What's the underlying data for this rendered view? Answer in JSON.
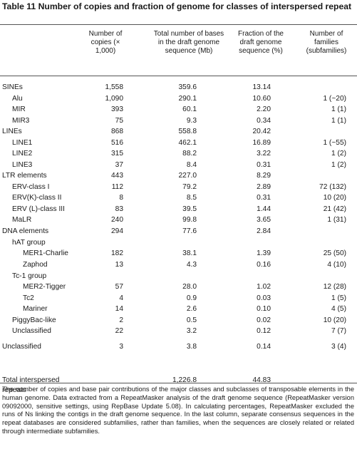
{
  "title": "Table 11 Number of copies and fraction of genome for classes of interspersed repeat",
  "headers": {
    "copies": "Number of copies (× 1,000)",
    "bases": "Total number of bases in the draft genome sequence (Mb)",
    "fraction": "Fraction of the draft genome sequence (%)",
    "families": "Number of families (subfamilies)"
  },
  "rows": [
    {
      "label": "SINEs",
      "copies": "1,558",
      "bases": "359.6",
      "fraction": "13.14",
      "families": ""
    },
    {
      "label": "Alu",
      "copies": "1,090",
      "bases": "290.1",
      "fraction": "10.60",
      "families": "1 (~20)"
    },
    {
      "label": "MIR",
      "copies": "393",
      "bases": "60.1",
      "fraction": "2.20",
      "families": "1 (1)"
    },
    {
      "label": "MIR3",
      "copies": "75",
      "bases": "9.3",
      "fraction": "0.34",
      "families": "1 (1)"
    },
    {
      "label": "LINEs",
      "copies": "868",
      "bases": "558.8",
      "fraction": "20.42",
      "families": ""
    },
    {
      "label": "LINE1",
      "copies": "516",
      "bases": "462.1",
      "fraction": "16.89",
      "families": "1 (~55)"
    },
    {
      "label": "LINE2",
      "copies": "315",
      "bases": "88.2",
      "fraction": "3.22",
      "families": "1 (2)"
    },
    {
      "label": "LINE3",
      "copies": "37",
      "bases": "8.4",
      "fraction": "0.31",
      "families": "1 (2)"
    },
    {
      "label": "LTR elements",
      "copies": "443",
      "bases": "227.0",
      "fraction": "8.29",
      "families": ""
    },
    {
      "label": "ERV-class I",
      "copies": "112",
      "bases": "79.2",
      "fraction": "2.89",
      "families": "72 (132)"
    },
    {
      "label": "ERV(K)-class II",
      "copies": "8",
      "bases": "8.5",
      "fraction": "0.31",
      "families": "10 (20)"
    },
    {
      "label": "ERV (L)-class III",
      "copies": "83",
      "bases": "39.5",
      "fraction": "1.44",
      "families": "21 (42)"
    },
    {
      "label": "MaLR",
      "copies": "240",
      "bases": "99.8",
      "fraction": "3.65",
      "families": "1 (31)"
    },
    {
      "label": "DNA elements",
      "copies": "294",
      "bases": "77.6",
      "fraction": "2.84",
      "families": ""
    },
    {
      "label": "hAT group",
      "copies": "",
      "bases": "",
      "fraction": "",
      "families": ""
    },
    {
      "label": "MER1-Charlie",
      "copies": "182",
      "bases": "38.1",
      "fraction": "1.39",
      "families": "25 (50)"
    },
    {
      "label": "Zaphod",
      "copies": "13",
      "bases": "4.3",
      "fraction": "0.16",
      "families": "4 (10)"
    },
    {
      "label": "Tc-1 group",
      "copies": "",
      "bases": "",
      "fraction": "",
      "families": ""
    },
    {
      "label": "MER2-Tigger",
      "copies": "57",
      "bases": "28.0",
      "fraction": "1.02",
      "families": "12 (28)"
    },
    {
      "label": "Tc2",
      "copies": "4",
      "bases": "0.9",
      "fraction": "0.03",
      "families": "1 (5)"
    },
    {
      "label": "Mariner",
      "copies": "14",
      "bases": "2.6",
      "fraction": "0.10",
      "families": "4 (5)"
    },
    {
      "label": "PiggyBac-like",
      "copies": "2",
      "bases": "0.5",
      "fraction": "0.02",
      "families": "10 (20)"
    },
    {
      "label": "Unclassified",
      "copies": "22",
      "bases": "3.2",
      "fraction": "0.12",
      "families": "7 (7)"
    },
    {
      "label": "Unclassified",
      "copies": "3",
      "bases": "3.8",
      "fraction": "0.14",
      "families": "3 (4)"
    }
  ],
  "total": {
    "label": "Total interspersed repeats",
    "bases": "1,226.8",
    "fraction": "44.83"
  },
  "footnote": "The number of copies and base pair contributions of the major classes and subclasses of transposable elements in the human genome. Data extracted from a RepeatMasker analysis of the draft genome sequence (RepeatMasker version 09092000, sensitive settings, using RepBase Update 5.08). In calculating percentages, RepeatMasker excluded the runs of Ns linking the contigs in the draft genome sequence. In the last column, separate consensus sequences in the repeat databases are considered subfamilies, rather than families, when the sequences are closely related or related through intermediate subfamilies."
}
